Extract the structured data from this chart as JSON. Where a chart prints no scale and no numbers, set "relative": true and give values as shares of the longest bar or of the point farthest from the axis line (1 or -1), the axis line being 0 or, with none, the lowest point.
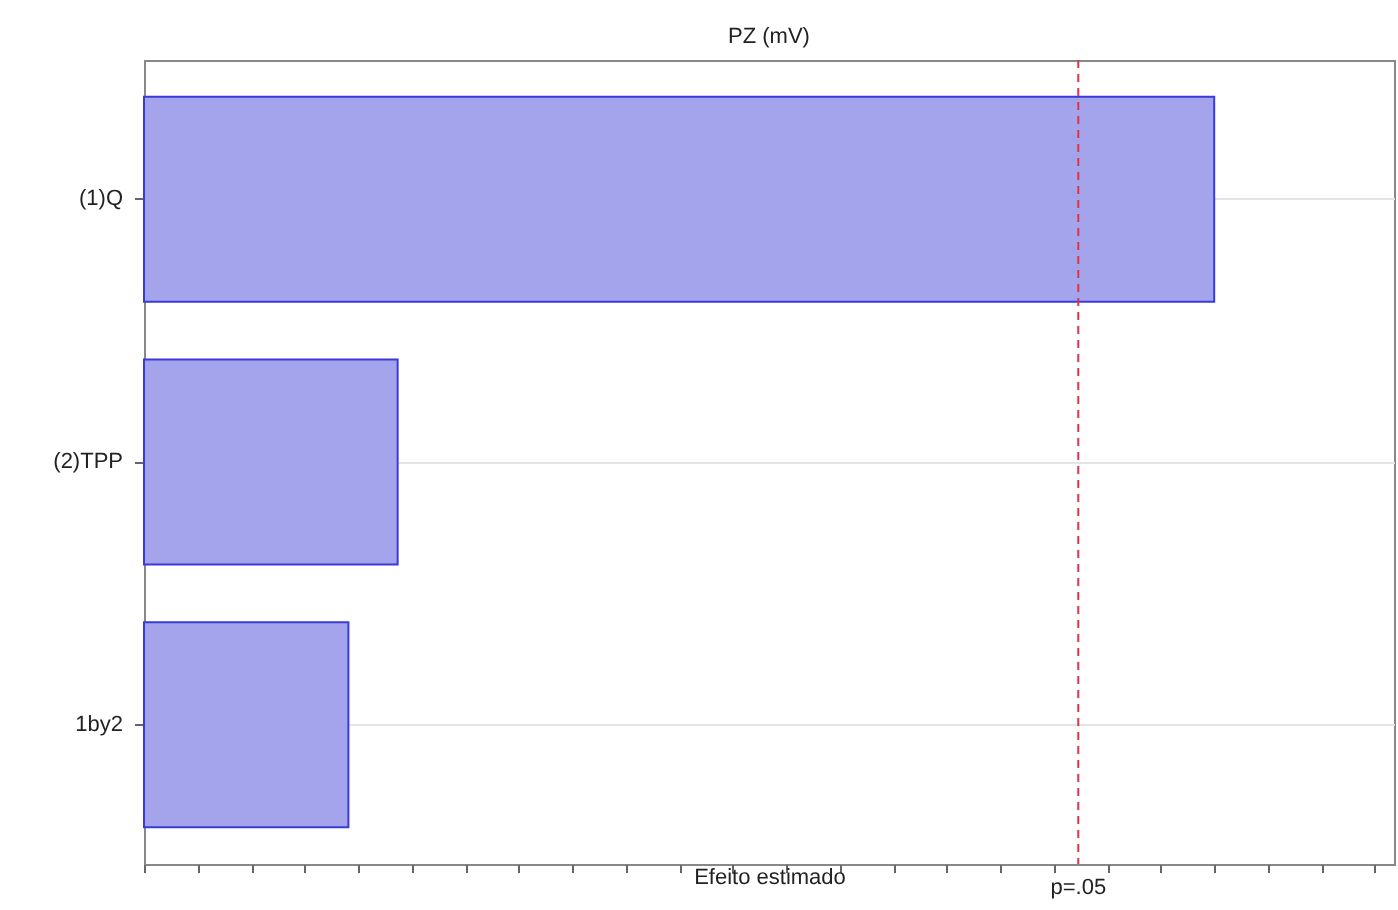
{
  "chart_data": {
    "type": "bar",
    "title": "PZ (mV)",
    "xlabel": "Efeito estimado",
    "orientation": "horizontal",
    "relative": true,
    "categories": [
      "(1)Q",
      "(2)TPP",
      "1by2"
    ],
    "values": [
      1,
      0.237,
      0.191
    ],
    "color": "#a4a4ec",
    "ref_lines": [
      {
        "axis": "x",
        "value": 0.873,
        "label": "p=.05",
        "color": "#e0304a",
        "line_style": "dashed"
      }
    ],
    "grid": "y"
  }
}
